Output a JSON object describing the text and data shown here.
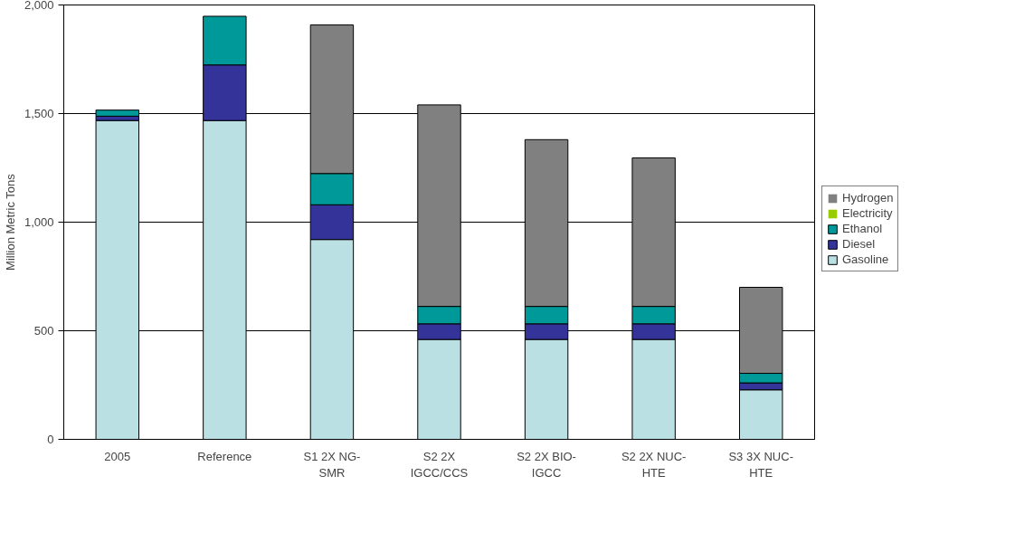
{
  "chart_data": {
    "type": "bar",
    "stacked": true,
    "ylabel": "Million Metric Tons",
    "categories": [
      "2005",
      "Reference",
      "S1 2X NG-\nSMR",
      "S2 2X\nIGCC/CCS",
      "S2 2X BIO-\nIGCC",
      "S2 2X NUC-\nHTE",
      "S3 3X NUC-\nHTE"
    ],
    "series": [
      {
        "name": "Gasoline",
        "color": "#bbe0e3",
        "values": [
          1468,
          1468,
          920,
          460,
          460,
          460,
          228
        ]
      },
      {
        "name": "Diesel",
        "color": "#333399",
        "values": [
          20,
          256,
          160,
          72,
          72,
          72,
          32
        ]
      },
      {
        "name": "Ethanol",
        "color": "#009999",
        "values": [
          28,
          224,
          144,
          80,
          80,
          80,
          44
        ]
      },
      {
        "name": "Electricity",
        "color": "#99cc00",
        "values": [
          0,
          0,
          0,
          0,
          0,
          0,
          0
        ]
      },
      {
        "name": "Hydrogen",
        "color": "#808080",
        "values": [
          0,
          0,
          684,
          928,
          768,
          684,
          396
        ]
      }
    ],
    "ylim": [
      0,
      2000
    ],
    "yticks": [
      0,
      {
        "value": 500,
        "label": "500"
      },
      {
        "value": 1000,
        "label": "1,000"
      },
      {
        "value": 1500,
        "label": "1,500"
      },
      {
        "value": 2000,
        "label": "2,000"
      }
    ],
    "grid": "y",
    "legend": "right"
  }
}
